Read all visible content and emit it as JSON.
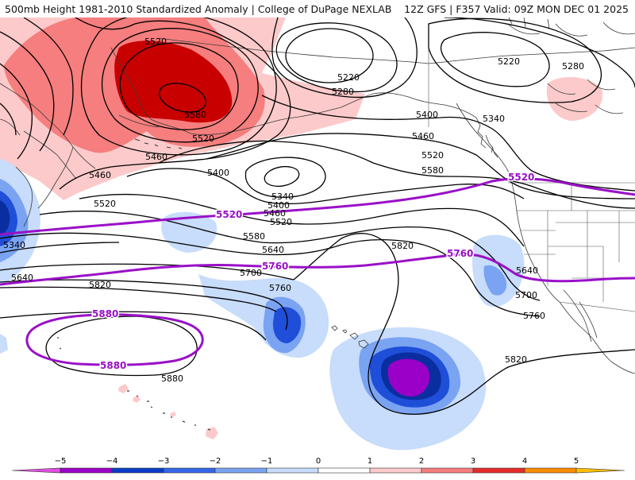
{
  "header": {
    "title": "500mb Height 1981-2010 Standardized Anomaly | College of DuPage NEXLAB",
    "run_info": "12Z GFS | F357 Valid: 09Z MON DEC 01 2025"
  },
  "contour_labels": {
    "c5520_nw": "5520",
    "c5580_low": "5580",
    "c5520_low_s": "5520",
    "c5460_low_s": "5460",
    "c5220_gulf": "5220",
    "c5280_gulf": "5280",
    "c5220_ne": "5220",
    "c5280_ne": "5280",
    "c5340_bc": "5340",
    "c5400_mid": "5400",
    "c5460_mid": "5460",
    "c5520_mid": "5520",
    "c5580_mid": "5580",
    "c5460_w": "5460",
    "c5400_w": "5400",
    "c5340_cut": "5340",
    "c5400_cut": "5400",
    "c5460_cut": "5460",
    "c5520_w": "5520",
    "c5520_cut": "5520",
    "c5580_cut": "5580",
    "c5640_cut": "5640",
    "c5340_far_w": "5340",
    "c5640_far_w": "5640",
    "c5700_w": "5700",
    "c5820_w": "5820",
    "c5760_w": "5760",
    "c5820_c": "5820",
    "c5640_e": "5640",
    "c5700_e": "5700",
    "c5760_e": "5760",
    "c5820_e": "5820",
    "c5880_s": "5880"
  },
  "purple_labels": {
    "p5520_a": "5520",
    "p5520_b": "5520",
    "p5760_a": "5760",
    "p5760_b": "5760",
    "p5880_a": "5880",
    "p5880_b": "5880"
  },
  "legend": {
    "ticks": [
      "−5",
      "−4",
      "−3",
      "−2",
      "−1",
      "0",
      "1",
      "2",
      "3",
      "4",
      "5"
    ],
    "colors": [
      "#e04fe0",
      "#9a00c8",
      "#0a3cc8",
      "#3466e8",
      "#7aa3f2",
      "#c8dcfb",
      "#ffffff",
      "#fccaca",
      "#f67e7e",
      "#e62b2b",
      "#b40000",
      "#fa8c00",
      "#ffc000"
    ]
  },
  "colors": {
    "purple": "#9a10c8",
    "contour": "#000000",
    "coast": "#3a3a3a"
  }
}
